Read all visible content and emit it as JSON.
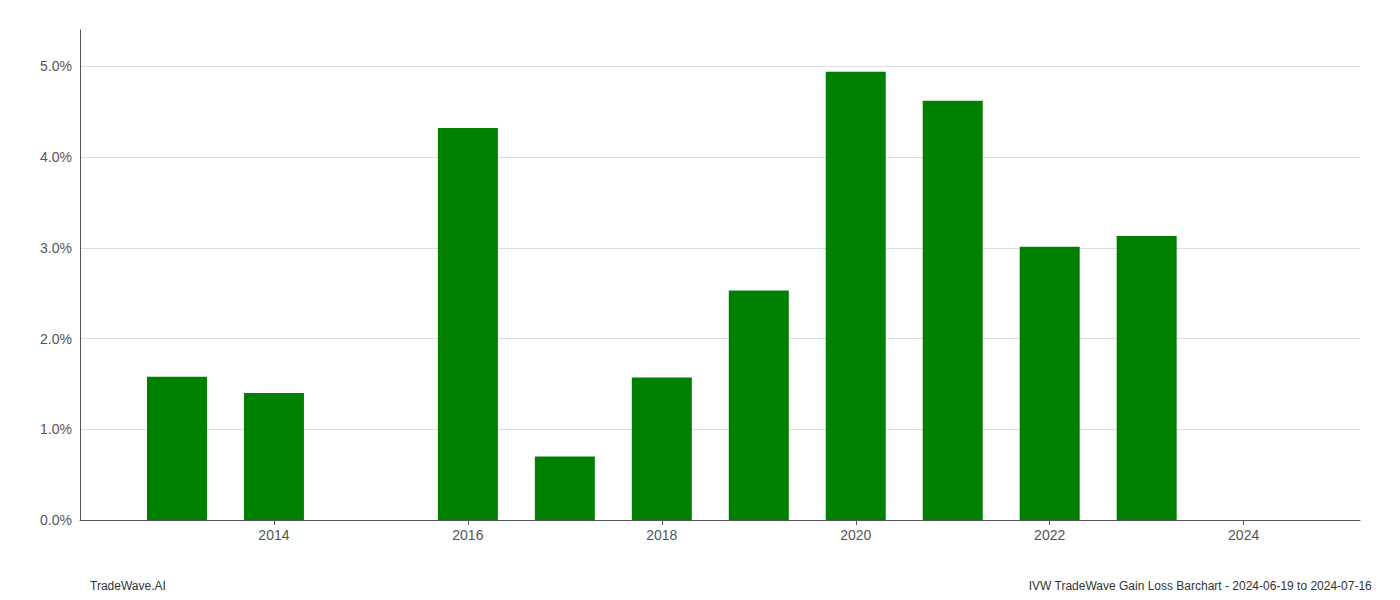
{
  "chart_data": {
    "type": "bar",
    "x": [
      2013,
      2014,
      2016,
      2017,
      2018,
      2019,
      2020,
      2021,
      2022,
      2023
    ],
    "values": [
      0.0158,
      0.014,
      0.0432,
      0.007,
      0.0157,
      0.0253,
      0.0494,
      0.0462,
      0.0301,
      0.0313
    ],
    "color": "#008000",
    "xlim": [
      2012.0,
      2025.2
    ],
    "xticks": [
      2014,
      2016,
      2018,
      2020,
      2022,
      2024
    ],
    "ylim": [
      0.0,
      0.054
    ],
    "yticks": [
      {
        "value": 0.0,
        "label": "0.0%"
      },
      {
        "value": 0.01,
        "label": "1.0%"
      },
      {
        "value": 0.02,
        "label": "2.0%"
      },
      {
        "value": 0.03,
        "label": "3.0%"
      },
      {
        "value": 0.04,
        "label": "4.0%"
      },
      {
        "value": 0.05,
        "label": "5.0%"
      }
    ],
    "grid": true,
    "annotations": [
      "TradeWave.AI",
      "IVW TradeWave Gain Loss Barchart - 2024-06-19 to 2024-07-16"
    ]
  }
}
